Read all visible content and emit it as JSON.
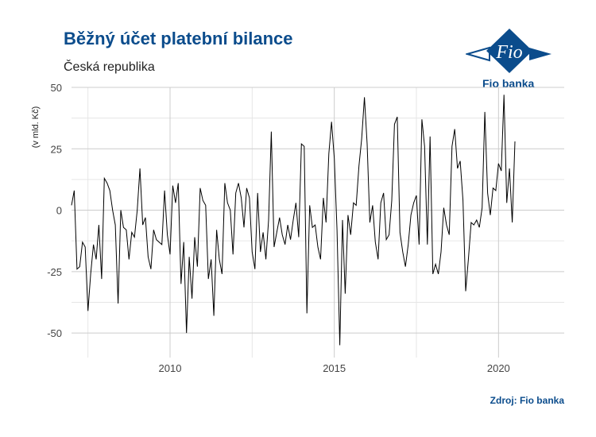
{
  "header": {
    "title": "Běžný účet platební bilance",
    "subtitle": "Česká republika",
    "logo_text": "Fio banka",
    "logo_mark": "Fio"
  },
  "footer": {
    "source": "Zdroj: Fio banka"
  },
  "colors": {
    "brand": "#0b4c8c",
    "line": "#000000",
    "grid": "#cccccc"
  },
  "chart_data": {
    "type": "line",
    "title": "Běžný účet platební bilance",
    "subtitle": "Česká republika",
    "xlabel": "",
    "ylabel": "(v mld. Kč)",
    "xlim": [
      2007.0,
      2022.0
    ],
    "ylim": [
      -60,
      50
    ],
    "x_ticks": [
      2010,
      2015,
      2020
    ],
    "y_ticks": [
      -50,
      -25,
      0,
      25,
      50
    ],
    "grid": true,
    "legend": "none",
    "series": [
      {
        "start": "2007-01",
        "frequency": "monthly",
        "values": [
          2,
          8,
          -24,
          -23,
          -13,
          -15,
          -41,
          -26,
          -14,
          -20,
          -6,
          -28,
          13,
          11,
          8,
          0,
          -6,
          -38,
          0,
          -7,
          -8,
          -20,
          -9,
          -11,
          0,
          17,
          -6,
          -3,
          -19,
          -24,
          -8,
          -12,
          -13,
          -14,
          8,
          -10,
          -18,
          10,
          3,
          11,
          -30,
          -13,
          -50,
          -19,
          -36,
          -11,
          -23,
          9,
          4,
          2,
          -28,
          -20,
          -43,
          -8,
          -20,
          -26,
          11,
          3,
          0,
          -18,
          7,
          11,
          5,
          -7,
          9,
          5,
          -17,
          -24,
          7,
          -17,
          -9,
          -20,
          -4,
          32,
          -15,
          -9,
          -3,
          -10,
          -14,
          -6,
          -12,
          -4,
          3,
          -11,
          27,
          26,
          -42,
          2,
          -7,
          -6,
          -15,
          -20,
          5,
          -5,
          23,
          36,
          21,
          -8,
          -55,
          -4,
          -34,
          -2,
          -10,
          3,
          2,
          18,
          29,
          46,
          27,
          -5,
          2,
          -13,
          -20,
          3,
          7,
          -12,
          -10,
          4,
          35,
          38,
          -9,
          -17,
          -23,
          -14,
          -2,
          3,
          6,
          -14,
          37,
          26,
          -14,
          30,
          -26,
          -22,
          -26,
          -17,
          1,
          -6,
          -10,
          26,
          33,
          17,
          20,
          4,
          -33,
          -20,
          -5,
          -6,
          -4,
          -7,
          1,
          40,
          7,
          -2,
          9,
          8,
          19,
          16,
          47,
          3,
          17,
          -5,
          28
        ]
      }
    ]
  }
}
